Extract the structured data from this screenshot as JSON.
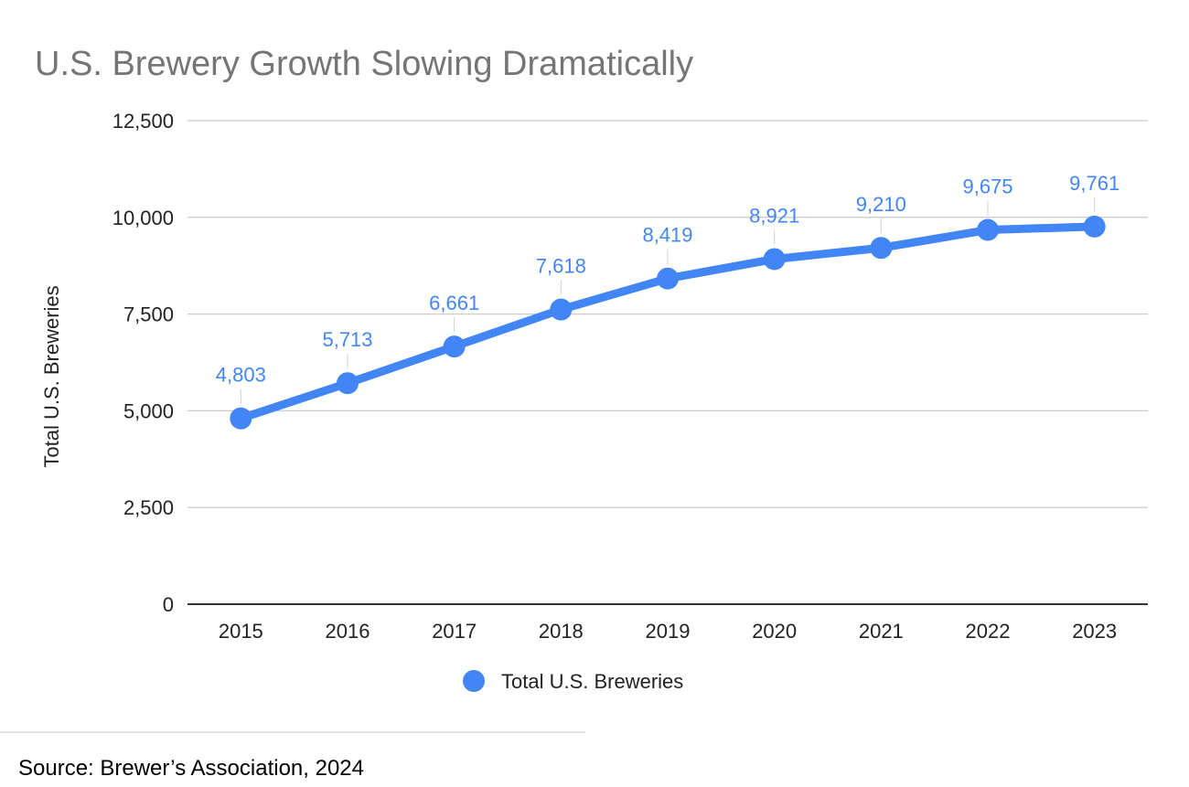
{
  "chart_data": {
    "type": "line",
    "title": "U.S. Brewery Growth Slowing Dramatically",
    "xlabel": "",
    "ylabel": "Total U.S. Breweries",
    "categories": [
      "2015",
      "2016",
      "2017",
      "2018",
      "2019",
      "2020",
      "2021",
      "2022",
      "2023"
    ],
    "series": [
      {
        "name": "Total U.S. Breweries",
        "values": [
          4803,
          5713,
          6661,
          7618,
          8419,
          8921,
          9210,
          9675,
          9761
        ],
        "data_labels": [
          "4,803",
          "5,713",
          "6,661",
          "7,618",
          "8,419",
          "8,921",
          "9,210",
          "9,675",
          "9,761"
        ],
        "color": "#4285f4"
      }
    ],
    "ylim": [
      0,
      12500
    ],
    "y_ticks": [
      0,
      2500,
      5000,
      7500,
      10000,
      12500
    ],
    "y_tick_labels": [
      "0",
      "2,500",
      "5,000",
      "7,500",
      "10,000",
      "12,500"
    ],
    "grid": true,
    "legend_position": "bottom"
  },
  "footer": {
    "source": "Source: Brewer’s Association, 2024"
  },
  "colors": {
    "series": "#4285f4",
    "data_label": "#4285f4",
    "title": "#757575",
    "gridline": "#cccccc",
    "axis": "#333333",
    "footer_rule": "#d9d9d9"
  }
}
